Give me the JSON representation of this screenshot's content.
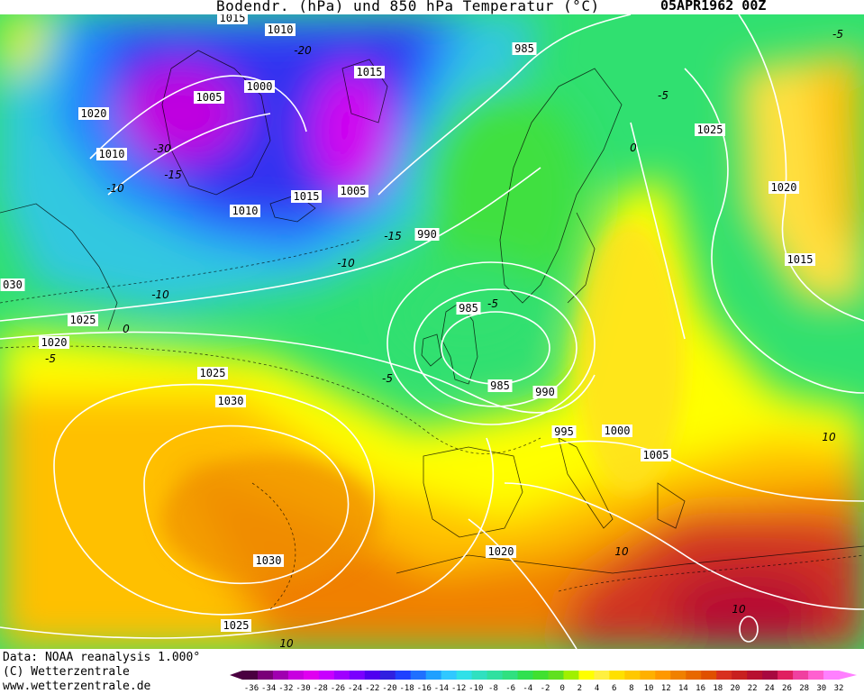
{
  "header": {
    "title": "Bodendr. (hPa) und 850 hPa Temperatur (°C)",
    "date": "05APR1962 00Z"
  },
  "footer": {
    "line1": "Data: NOAA reanalysis 1.000°",
    "line2": "(C) Wetterzentrale",
    "line3": "www.wetterzentrale.de"
  },
  "colors": {
    "scale": [
      "#4a0040",
      "#7a0078",
      "#a000b0",
      "#c800e0",
      "#e000f0",
      "#c800ff",
      "#a000ff",
      "#7a00ff",
      "#5000f0",
      "#3020e0",
      "#2040ff",
      "#2070ff",
      "#20a0ff",
      "#30c8ff",
      "#30e0e8",
      "#30e0c0",
      "#30e0a0",
      "#30e080",
      "#30e050",
      "#40e030",
      "#60e020",
      "#a0f000",
      "#ffff00",
      "#fff040",
      "#ffe000",
      "#ffc800",
      "#ffb000",
      "#ff9800",
      "#f08000",
      "#e86800",
      "#e05000",
      "#d83020",
      "#c82020",
      "#b81030",
      "#a80840",
      "#e02060",
      "#f040a0",
      "#ff60d0",
      "#ff80ff"
    ]
  },
  "legend": {
    "ticks": [
      "-36",
      "-34",
      "-32",
      "-30",
      "-28",
      "-26",
      "-24",
      "-22",
      "-20",
      "-18",
      "-16",
      "-14",
      "-12",
      "-10",
      "-8",
      "-6",
      "-4",
      "-2",
      "0",
      "2",
      "4",
      "6",
      "8",
      "10",
      "12",
      "14",
      "16",
      "18",
      "20",
      "22",
      "24",
      "26",
      "28",
      "30",
      "32"
    ]
  },
  "isobar_labels": [
    {
      "text": "1015"
    },
    {
      "text": "1010"
    },
    {
      "text": "985"
    },
    {
      "text": "1005"
    },
    {
      "text": "1000"
    },
    {
      "text": "1015"
    },
    {
      "text": "1020"
    },
    {
      "text": "1010"
    },
    {
      "text": "1025"
    },
    {
      "text": "1020"
    },
    {
      "text": "1015"
    },
    {
      "text": "1005"
    },
    {
      "text": "1010"
    },
    {
      "text": "990"
    },
    {
      "text": "1015"
    },
    {
      "text": "030"
    },
    {
      "text": "1025"
    },
    {
      "text": "1020"
    },
    {
      "text": "985"
    },
    {
      "text": "985"
    },
    {
      "text": "990"
    },
    {
      "text": "995"
    },
    {
      "text": "1000"
    },
    {
      "text": "1005"
    },
    {
      "text": "1025"
    },
    {
      "text": "1030"
    },
    {
      "text": "1030"
    },
    {
      "text": "1020"
    },
    {
      "text": "1025"
    }
  ],
  "temp_labels": [
    {
      "text": "-20"
    },
    {
      "text": "-30"
    },
    {
      "text": "-10"
    },
    {
      "text": "-15"
    },
    {
      "text": "-10"
    },
    {
      "text": "-10"
    },
    {
      "text": "-15"
    },
    {
      "text": "-5"
    },
    {
      "text": "-5"
    },
    {
      "text": "-5"
    },
    {
      "text": "-5"
    },
    {
      "text": "0"
    },
    {
      "text": "10"
    },
    {
      "text": "0"
    },
    {
      "text": "10"
    },
    {
      "text": "10"
    },
    {
      "text": "10"
    },
    {
      "text": "-5"
    }
  ]
}
